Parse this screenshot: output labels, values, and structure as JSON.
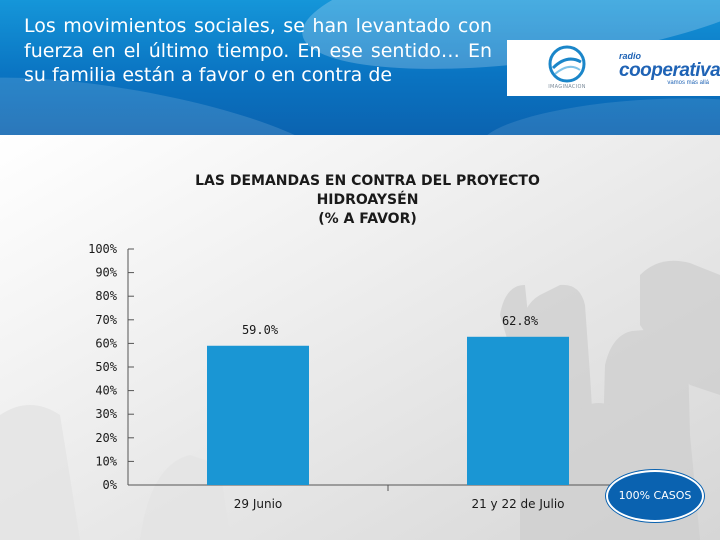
{
  "header": {
    "question": "Los movimientos sociales, se han levantado con fuerza en el último tiempo. En ese sentido… En su familia están a favor o en contra de",
    "logo_left_text": "IMAGINACION",
    "logo_right_small": "radio",
    "logo_right_main": "cooperativa",
    "logo_right_tag": "vamos más allá"
  },
  "chart_data": {
    "type": "bar",
    "title_lines": [
      "LAS DEMANDAS EN CONTRA DEL PROYECTO",
      "HIDROAYSÉN",
      "(% A FAVOR)"
    ],
    "categories": [
      "29 Junio",
      "21 y 22 de Julio"
    ],
    "values": [
      59.0,
      62.8
    ],
    "value_labels": [
      "59.0%",
      "62.8%"
    ],
    "y_ticks": [
      "0%",
      "10%",
      "20%",
      "30%",
      "40%",
      "50%",
      "60%",
      "70%",
      "80%",
      "90%",
      "100%"
    ],
    "ylim": [
      0,
      100
    ],
    "bar_color": "#1a96d4"
  },
  "badge": {
    "label": "100% CASOS"
  },
  "colors": {
    "header": "#0a74c2",
    "badge": "#0a62b0"
  }
}
